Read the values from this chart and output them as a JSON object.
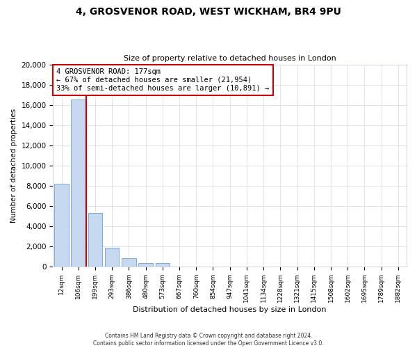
{
  "title": "4, GROSVENOR ROAD, WEST WICKHAM, BR4 9PU",
  "subtitle": "Size of property relative to detached houses in London",
  "xlabel": "Distribution of detached houses by size in London",
  "ylabel": "Number of detached properties",
  "bar_labels": [
    "12sqm",
    "106sqm",
    "199sqm",
    "293sqm",
    "386sqm",
    "480sqm",
    "573sqm",
    "667sqm",
    "760sqm",
    "854sqm",
    "947sqm",
    "1041sqm",
    "1134sqm",
    "1228sqm",
    "1321sqm",
    "1415sqm",
    "1508sqm",
    "1602sqm",
    "1695sqm",
    "1789sqm",
    "1882sqm"
  ],
  "bar_values": [
    8200,
    16500,
    5300,
    1800,
    800,
    300,
    300,
    0,
    0,
    0,
    0,
    0,
    0,
    0,
    0,
    0,
    0,
    0,
    0,
    0,
    0
  ],
  "bar_color": "#c5d8f0",
  "bar_edge_color": "#7bafd4",
  "vline_color": "#cc0000",
  "annotation_title": "4 GROSVENOR ROAD: 177sqm",
  "annotation_line1": "← 67% of detached houses are smaller (21,954)",
  "annotation_line2": "33% of semi-detached houses are larger (10,891) →",
  "annotation_box_color": "#ffffff",
  "annotation_box_edge": "#cc0000",
  "ylim": [
    0,
    20000
  ],
  "yticks": [
    0,
    2000,
    4000,
    6000,
    8000,
    10000,
    12000,
    14000,
    16000,
    18000,
    20000
  ],
  "footnote1": "Contains HM Land Registry data © Crown copyright and database right 2024.",
  "footnote2": "Contains public sector information licensed under the Open Government Licence v3.0.",
  "grid_color": "#d0d8e8",
  "bg_color": "#ffffff",
  "fig_width": 6.0,
  "fig_height": 5.0
}
